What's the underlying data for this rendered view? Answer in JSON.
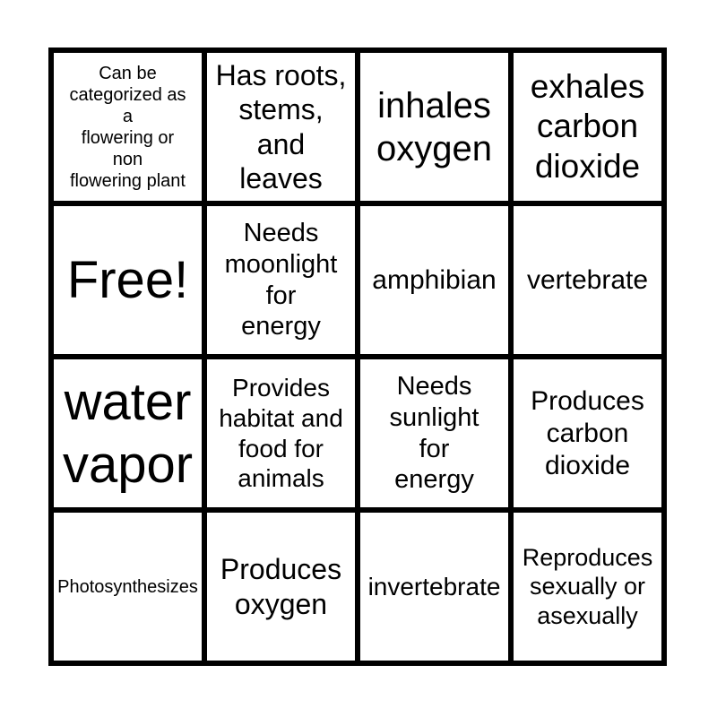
{
  "page": {
    "background": "#ffffff"
  },
  "card": {
    "type": "bingo-card",
    "rows": 4,
    "cols": 4,
    "border_color": "#000000",
    "text_color": "#000000",
    "cell_background": "#ffffff",
    "free_space_label": "Free!",
    "cells": [
      {
        "row": 1,
        "col": 1,
        "text": "Can be\ncategorized as\na\nflowering or\nnon\nflowering plant",
        "font_size": 20
      },
      {
        "row": 1,
        "col": 2,
        "text": "Has roots,\nstems,\nand\nleaves",
        "font_size": 32
      },
      {
        "row": 1,
        "col": 3,
        "text": "inhales\noxygen",
        "font_size": 40
      },
      {
        "row": 1,
        "col": 4,
        "text": "exhales\ncarbon\ndioxide",
        "font_size": 37
      },
      {
        "row": 2,
        "col": 1,
        "text": "Free!",
        "font_size": 58
      },
      {
        "row": 2,
        "col": 2,
        "text": "Needs\nmoonlight\nfor\nenergy",
        "font_size": 29
      },
      {
        "row": 2,
        "col": 3,
        "text": "amphibian",
        "font_size": 30
      },
      {
        "row": 2,
        "col": 4,
        "text": "vertebrate",
        "font_size": 30
      },
      {
        "row": 3,
        "col": 1,
        "text": "water\nvapor",
        "font_size": 58
      },
      {
        "row": 3,
        "col": 2,
        "text": "Provides\nhabitat and\nfood for\nanimals",
        "font_size": 28
      },
      {
        "row": 3,
        "col": 3,
        "text": "Needs\nsunlight\nfor\nenergy",
        "font_size": 29
      },
      {
        "row": 3,
        "col": 4,
        "text": "Produces\ncarbon\ndioxide",
        "font_size": 30
      },
      {
        "row": 4,
        "col": 1,
        "text": "Photosynthesizes",
        "font_size": 20
      },
      {
        "row": 4,
        "col": 2,
        "text": "Produces\noxygen",
        "font_size": 32
      },
      {
        "row": 4,
        "col": 3,
        "text": "invertebrate",
        "font_size": 28
      },
      {
        "row": 4,
        "col": 4,
        "text": "Reproduces\nsexually or\nasexually",
        "font_size": 27
      }
    ]
  }
}
